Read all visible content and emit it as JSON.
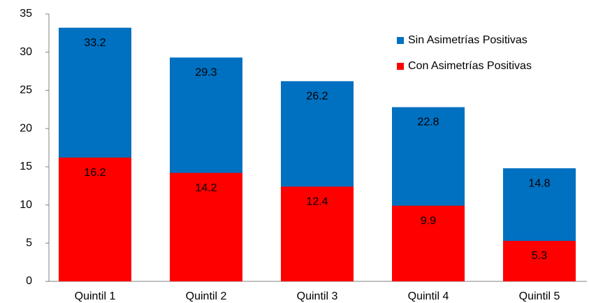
{
  "chart_data": {
    "type": "bar",
    "categories": [
      "Quintil 1",
      "Quintil 2",
      "Quintil 3",
      "Quintil 4",
      "Quintil 5"
    ],
    "series": [
      {
        "name": "Sin Asimetrías Positivas",
        "color": "#0070c0",
        "values": [
          33.2,
          29.3,
          26.2,
          22.8,
          14.8
        ]
      },
      {
        "name": "Con Asimetrías Positivas",
        "color": "#ff0000",
        "values": [
          16.2,
          14.2,
          12.4,
          9.9,
          5.3
        ]
      }
    ],
    "ylim": [
      0,
      35
    ],
    "yticks": [
      0,
      5,
      10,
      15,
      20,
      25,
      30,
      35
    ],
    "grid": false,
    "legend": "top-right"
  }
}
